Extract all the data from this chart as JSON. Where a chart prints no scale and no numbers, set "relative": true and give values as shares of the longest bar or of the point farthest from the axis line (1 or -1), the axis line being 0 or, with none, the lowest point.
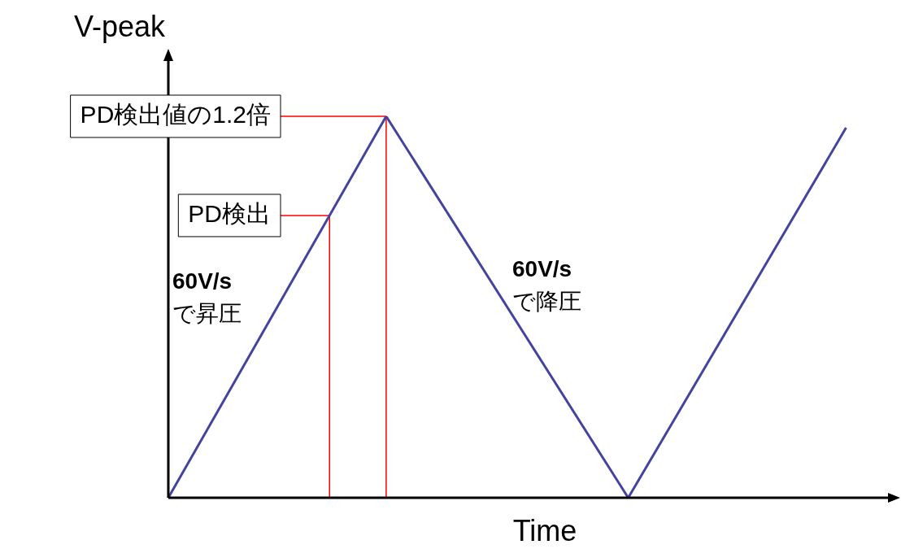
{
  "chart_data": {
    "type": "line",
    "relative": true,
    "xlabel": "Time",
    "ylabel": "V-peak",
    "categories": [
      null,
      null,
      null,
      null,
      null,
      null,
      null,
      null,
      null,
      null,
      null,
      null,
      null,
      null,
      null,
      null,
      null,
      null,
      null,
      null,
      null,
      null,
      null,
      null,
      null,
      null,
      null,
      null,
      null,
      null,
      null
    ],
    "series": [
      {
        "color": "#4444a0",
        "values": [
          0,
          null,
          null,
          null,
          null,
          null,
          null,
          null,
          null,
          1,
          null,
          null,
          null,
          null,
          null,
          null,
          null,
          null,
          null,
          0,
          null,
          null,
          null,
          null,
          null,
          null,
          null,
          null,
          0.97,
          null,
          null
        ]
      }
    ],
    "ref_lines": [
      {
        "axis": "y",
        "value": 0.74,
        "label": "PD検出",
        "color": "#ff0000"
      },
      {
        "axis": "y",
        "value": 1,
        "label": "PD検出値の1.2倍",
        "color": "#ff0000"
      }
    ],
    "annotations": [
      "60V/s\nで昇圧",
      "60V/s\nで降圧"
    ]
  }
}
